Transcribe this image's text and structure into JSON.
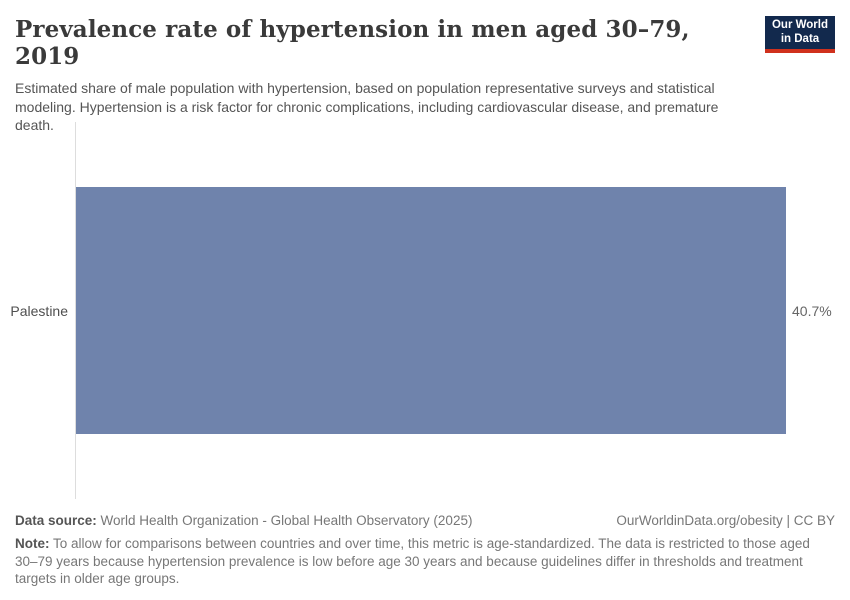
{
  "header": {
    "title": "Prevalence rate of hypertension in men aged 30–79, 2019",
    "subtitle": "Estimated share of male population with hypertension, based on population representative surveys and statistical modeling. Hypertension is a risk factor for chronic complications, including cardiovascular disease, and premature death.",
    "logo": {
      "line1": "Our World",
      "line2": "in Data",
      "bg_color": "#12294d",
      "accent_color": "#d0311d"
    }
  },
  "chart_data": {
    "type": "bar",
    "orientation": "horizontal",
    "categories": [
      "Palestine"
    ],
    "values": [
      40.7
    ],
    "value_labels": [
      "40.7%"
    ],
    "unit": "%",
    "xlim": [
      0,
      40.7
    ],
    "bar_color": "#6f83ac",
    "title": "Prevalence rate of hypertension in men aged 30–79, 2019",
    "xlabel": "",
    "ylabel": "",
    "grid": false,
    "legend": "none"
  },
  "footer": {
    "data_source_label": "Data source:",
    "data_source_text": " World Health Organization - Global Health Observatory (2025)",
    "link_text": "OurWorldinData.org/obesity | CC BY",
    "note_label": "Note:",
    "note_text": " To allow for comparisons between countries and over time, this metric is age-standardized. The data is restricted to those aged 30–79 years because hypertension prevalence is low before age 30 years and because guidelines differ in thresholds and treatment targets in older age groups."
  }
}
